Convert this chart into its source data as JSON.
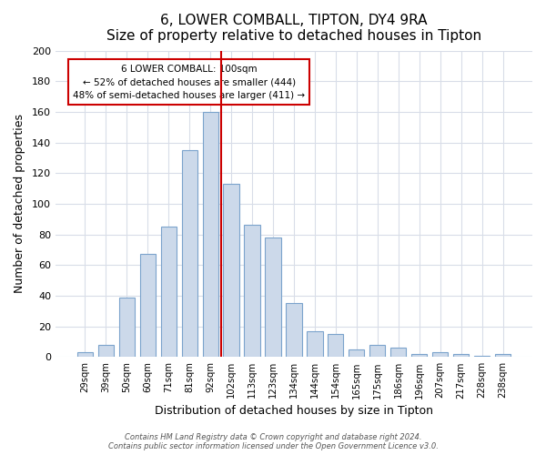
{
  "title": "6, LOWER COMBALL, TIPTON, DY4 9RA",
  "subtitle": "Size of property relative to detached houses in Tipton",
  "xlabel": "Distribution of detached houses by size in Tipton",
  "ylabel": "Number of detached properties",
  "bar_labels": [
    "29sqm",
    "39sqm",
    "50sqm",
    "60sqm",
    "71sqm",
    "81sqm",
    "92sqm",
    "102sqm",
    "113sqm",
    "123sqm",
    "134sqm",
    "144sqm",
    "154sqm",
    "165sqm",
    "175sqm",
    "186sqm",
    "196sqm",
    "207sqm",
    "217sqm",
    "228sqm",
    "238sqm"
  ],
  "bar_values": [
    3,
    8,
    39,
    67,
    85,
    135,
    160,
    113,
    86,
    78,
    35,
    17,
    15,
    5,
    8,
    6,
    2,
    3,
    2,
    1,
    2
  ],
  "bar_color": "#ccd9ea",
  "bar_edge_color": "#7ba3cc",
  "vline_color": "#cc0000",
  "annotation_title": "6 LOWER COMBALL: 100sqm",
  "annotation_line1": "← 52% of detached houses are smaller (444)",
  "annotation_line2": "48% of semi-detached houses are larger (411) →",
  "annotation_box_color": "#ffffff",
  "annotation_box_edge": "#cc0000",
  "ylim": [
    0,
    200
  ],
  "yticks": [
    0,
    20,
    40,
    60,
    80,
    100,
    120,
    140,
    160,
    180,
    200
  ],
  "footer_line1": "Contains HM Land Registry data © Crown copyright and database right 2024.",
  "footer_line2": "Contains public sector information licensed under the Open Government Licence v3.0.",
  "bg_color": "#ffffff",
  "plot_bg_color": "#ffffff",
  "grid_color": "#d8dde8"
}
